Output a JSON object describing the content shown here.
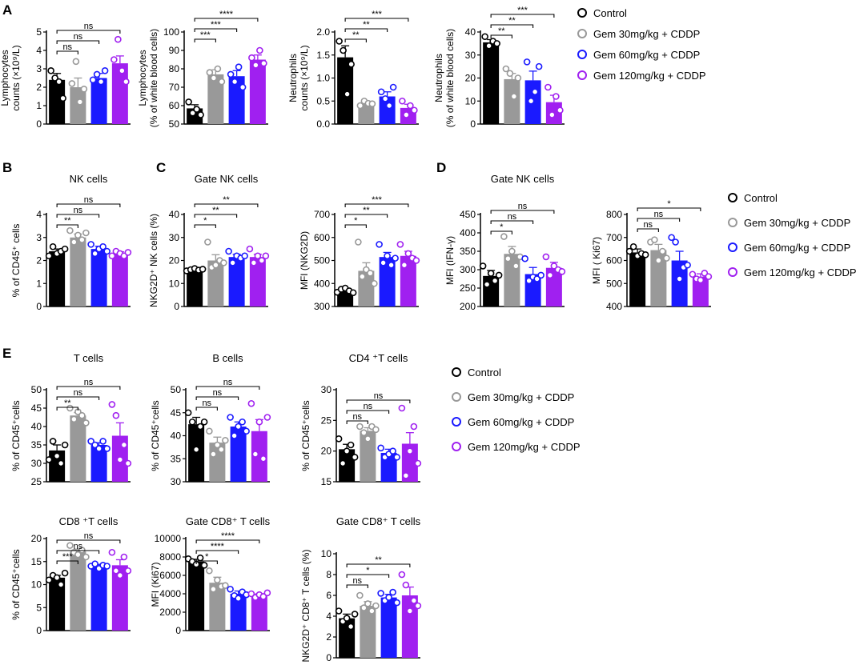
{
  "colors": {
    "control": "#000000",
    "gem30": "#999999",
    "gem60": "#1a1aff",
    "gem120": "#a020f0"
  },
  "legend": [
    "Control",
    "Gem 30mg/kg + CDDP",
    "Gem 60mg/kg + CDDP",
    "Gem 120mg/kg + CDDP"
  ],
  "panel_letters": [
    "A",
    "B",
    "C",
    "D",
    "E"
  ],
  "chart_data": [
    {
      "id": "a1",
      "type": "bar",
      "title": "",
      "ylabel": [
        "Lymphocytes",
        "counts (×10⁹/L)"
      ],
      "ylim": [
        0,
        5
      ],
      "ticks": [
        0,
        1,
        2,
        3,
        4,
        5
      ],
      "values": [
        2.4,
        2.0,
        2.5,
        3.3
      ],
      "errors": [
        0.35,
        0.5,
        0.25,
        0.4
      ],
      "points": [
        [
          2.9,
          2.5,
          2.3,
          1.4
        ],
        [
          2.2,
          3.4,
          1.2,
          1.9
        ],
        [
          2.4,
          2.7,
          2.3,
          2.9
        ],
        [
          3.5,
          4.6,
          2.9,
          2.3
        ]
      ],
      "comparisons": [
        {
          "to": 1,
          "label": "ns"
        },
        {
          "to": 2,
          "label": "ns"
        },
        {
          "to": 3,
          "label": "ns"
        }
      ]
    },
    {
      "id": "a2",
      "type": "bar",
      "title": "",
      "ylabel": [
        "Lymphocytes",
        "(% of white blood cells)"
      ],
      "ylim": [
        50,
        100
      ],
      "ticks": [
        50,
        60,
        70,
        80,
        90,
        100
      ],
      "values": [
        58.5,
        77,
        76,
        85
      ],
      "errors": [
        2,
        2.5,
        3,
        2.5
      ],
      "points": [
        [
          62,
          56,
          58,
          55
        ],
        [
          78,
          75,
          80,
          73
        ],
        [
          77,
          73,
          81,
          70
        ],
        [
          86,
          82,
          90,
          83
        ]
      ],
      "comparisons": [
        {
          "to": 1,
          "label": "***"
        },
        {
          "to": 2,
          "label": "***"
        },
        {
          "to": 3,
          "label": "****"
        }
      ]
    },
    {
      "id": "a3",
      "type": "bar",
      "title": "",
      "ylabel": [
        "Neutrophils",
        "counts (×10⁹/L)"
      ],
      "ylim": [
        0,
        2.0
      ],
      "ticks": [
        0.0,
        0.5,
        1.0,
        1.5,
        2.0
      ],
      "decimals": 1,
      "values": [
        1.45,
        0.45,
        0.6,
        0.35
      ],
      "errors": [
        0.25,
        0.05,
        0.1,
        0.08
      ],
      "points": [
        [
          1.8,
          1.6,
          0.65,
          1.3
        ],
        [
          0.4,
          0.5,
          0.45,
          0.44
        ],
        [
          0.7,
          0.55,
          0.4,
          0.8
        ],
        [
          0.5,
          0.2,
          0.4,
          0.3
        ]
      ],
      "comparisons": [
        {
          "to": 1,
          "label": "**"
        },
        {
          "to": 2,
          "label": "**"
        },
        {
          "to": 3,
          "label": "***"
        }
      ]
    },
    {
      "id": "a4",
      "type": "bar",
      "title": "",
      "ylabel": [
        "Neutrophils",
        "(% of white blood cells)"
      ],
      "ylim": [
        0,
        40
      ],
      "ticks": [
        0,
        10,
        20,
        30,
        40
      ],
      "values": [
        35.5,
        19.5,
        19,
        9.5
      ],
      "errors": [
        1.2,
        2.5,
        4,
        3
      ],
      "points": [
        [
          38,
          34,
          36,
          35
        ],
        [
          24,
          22,
          12,
          20
        ],
        [
          27,
          10,
          14,
          25
        ],
        [
          16,
          4,
          12,
          6
        ]
      ],
      "comparisons": [
        {
          "to": 1,
          "label": "**"
        },
        {
          "to": 2,
          "label": "**"
        },
        {
          "to": 3,
          "label": "***"
        }
      ]
    },
    {
      "id": "b1",
      "type": "bar",
      "title": "NK cells",
      "ylabel": [
        "% of CD45⁺ cells"
      ],
      "ylim": [
        0,
        4
      ],
      "ticks": [
        0,
        1,
        2,
        3,
        4
      ],
      "values": [
        2.4,
        3.0,
        2.5,
        2.3
      ],
      "errors": [
        0.1,
        0.15,
        0.12,
        0.08
      ],
      "points": [
        [
          2.2,
          2.6,
          2.3,
          2.4,
          2.5
        ],
        [
          3.3,
          2.8,
          3.1,
          2.9,
          3.2
        ],
        [
          2.7,
          2.3,
          2.5,
          2.6,
          2.4
        ],
        [
          2.2,
          2.4,
          2.3,
          2.2,
          2.35
        ]
      ],
      "comparisons": [
        {
          "to": 1,
          "label": "**"
        },
        {
          "to": 2,
          "label": "ns"
        },
        {
          "to": 3,
          "label": "ns"
        }
      ]
    },
    {
      "id": "c1",
      "type": "bar",
      "title": "Gate NK cells",
      "ylabel": [
        "NKG2D⁺ NK cells (%)"
      ],
      "ylim": [
        0,
        40
      ],
      "ticks": [
        0,
        10,
        20,
        30,
        40
      ],
      "values": [
        16,
        20,
        21.5,
        21.5
      ],
      "errors": [
        0.5,
        2.5,
        1.2,
        1.2
      ],
      "points": [
        [
          15.5,
          16,
          16.5,
          15.8,
          16.2
        ],
        [
          28,
          17,
          18,
          20,
          19
        ],
        [
          24,
          19,
          22,
          21,
          22
        ],
        [
          25,
          19,
          22,
          20,
          22
        ]
      ],
      "comparisons": [
        {
          "to": 1,
          "label": "*"
        },
        {
          "to": 2,
          "label": "**"
        },
        {
          "to": 3,
          "label": "**"
        }
      ]
    },
    {
      "id": "c2",
      "type": "bar",
      "title": "",
      "ylabel": [
        "MFI (NKG2D)"
      ],
      "ylim": [
        300,
        700
      ],
      "ticks": [
        300,
        400,
        500,
        600,
        700
      ],
      "values": [
        370,
        455,
        515,
        520
      ],
      "errors": [
        8,
        35,
        20,
        20
      ],
      "points": [
        [
          362,
          375,
          380,
          368,
          360
        ],
        [
          580,
          430,
          460,
          445,
          400
        ],
        [
          570,
          490,
          520,
          480,
          510
        ],
        [
          570,
          480,
          530,
          510,
          500
        ]
      ],
      "comparisons": [
        {
          "to": 1,
          "label": "*"
        },
        {
          "to": 2,
          "label": "**"
        },
        {
          "to": 3,
          "label": "***"
        }
      ]
    },
    {
      "id": "d1",
      "type": "bar",
      "title": "Gate NK cells",
      "ylabel": [
        "MFI (IFN-γ)"
      ],
      "ylim": [
        200,
        450
      ],
      "ticks": [
        200,
        250,
        300,
        350,
        400,
        450
      ],
      "values": [
        283,
        343,
        288,
        305
      ],
      "errors": [
        15,
        20,
        18,
        15
      ],
      "points": [
        [
          310,
          260,
          290,
          270,
          285
        ],
        [
          390,
          330,
          350,
          310,
          335
        ],
        [
          330,
          270,
          280,
          275,
          285
        ],
        [
          335,
          285,
          310,
          300,
          295
        ]
      ],
      "comparisons": [
        {
          "to": 1,
          "label": "*"
        },
        {
          "to": 2,
          "label": "ns"
        },
        {
          "to": 3,
          "label": "ns"
        }
      ]
    },
    {
      "id": "d2",
      "type": "bar",
      "title": "",
      "ylabel": [
        "MFI ( Ki67)"
      ],
      "ylim": [
        400,
        800
      ],
      "ticks": [
        400,
        500,
        600,
        700,
        800
      ],
      "values": [
        635,
        645,
        600,
        530
      ],
      "errors": [
        15,
        25,
        40,
        12
      ],
      "points": [
        [
          640,
          660,
          620,
          630,
          625
        ],
        [
          680,
          690,
          600,
          640,
          610
        ],
        [
          700,
          680,
          520,
          570,
          580
        ],
        [
          540,
          520,
          515,
          545,
          530
        ]
      ],
      "comparisons": [
        {
          "to": 1,
          "label": "ns"
        },
        {
          "to": 2,
          "label": "ns"
        },
        {
          "to": 3,
          "label": "*"
        }
      ]
    },
    {
      "id": "e1",
      "type": "bar",
      "title": "T cells",
      "ylabel": [
        "% of CD45⁺cells"
      ],
      "ylim": [
        25,
        50
      ],
      "ticks": [
        25,
        30,
        35,
        40,
        45,
        50
      ],
      "values": [
        33.5,
        43,
        35,
        37.5
      ],
      "errors": [
        1.5,
        0.8,
        0.6,
        3.5
      ],
      "points": [
        [
          31,
          36,
          32,
          30,
          35
        ],
        [
          45,
          42,
          44,
          43,
          41
        ],
        [
          36,
          35,
          34,
          36,
          34
        ],
        [
          46,
          43,
          31,
          35,
          30
        ]
      ],
      "comparisons": [
        {
          "to": 1,
          "label": "**"
        },
        {
          "to": 2,
          "label": "ns"
        },
        {
          "to": 3,
          "label": "ns"
        }
      ]
    },
    {
      "id": "e2",
      "type": "bar",
      "title": "B cells",
      "ylabel": [
        "% of CD45⁺cells"
      ],
      "ylim": [
        30,
        50
      ],
      "ticks": [
        30,
        35,
        40,
        45,
        50
      ],
      "values": [
        42.5,
        38.5,
        42,
        41
      ],
      "errors": [
        1.5,
        1.2,
        1.0,
        2.5
      ],
      "points": [
        [
          45,
          43,
          37,
          42,
          43
        ],
        [
          41,
          36,
          38,
          37,
          39
        ],
        [
          44,
          40,
          42,
          43,
          41
        ],
        [
          47,
          36,
          43,
          35,
          44
        ]
      ],
      "comparisons": [
        {
          "to": 1,
          "label": "ns"
        },
        {
          "to": 2,
          "label": "ns"
        },
        {
          "to": 3,
          "label": "ns"
        }
      ]
    },
    {
      "id": "e3",
      "type": "bar",
      "title": "CD4 ⁺T cells",
      "ylabel": [
        "% of CD45⁺cells"
      ],
      "ylim": [
        15,
        30
      ],
      "ticks": [
        15,
        20,
        25,
        30
      ],
      "values": [
        20.3,
        23.3,
        19.7,
        21.2
      ],
      "errors": [
        0.8,
        0.5,
        0.6,
        1.8
      ],
      "points": [
        [
          22,
          18,
          20,
          21,
          19
        ],
        [
          24,
          23,
          22,
          24,
          23.5
        ],
        [
          20.5,
          19,
          19.5,
          20,
          19
        ],
        [
          27,
          16,
          20,
          24,
          18
        ]
      ],
      "comparisons": [
        {
          "to": 1,
          "label": "ns"
        },
        {
          "to": 2,
          "label": "ns"
        },
        {
          "to": 3,
          "label": "ns"
        }
      ]
    },
    {
      "id": "e4",
      "type": "bar",
      "title": "CD8 ⁺T cells",
      "ylabel": [
        "% of CD45⁺cells"
      ],
      "ylim": [
        0,
        20
      ],
      "ticks": [
        0,
        5,
        10,
        15,
        20
      ],
      "values": [
        11.5,
        17.2,
        14.1,
        14.2
      ],
      "errors": [
        0.5,
        0.5,
        0.3,
        1.2
      ],
      "points": [
        [
          11,
          12,
          11.5,
          10,
          12.5
        ],
        [
          18.5,
          17,
          16.5,
          17.5,
          16
        ],
        [
          14,
          14.5,
          13.5,
          14.2,
          14
        ],
        [
          17,
          13,
          12,
          16,
          13
        ]
      ],
      "comparisons": [
        {
          "to": 1,
          "label": "***"
        },
        {
          "to": 2,
          "label": "ns"
        },
        {
          "to": 3,
          "label": "ns"
        }
      ]
    },
    {
      "id": "e5",
      "type": "bar",
      "title": "Gate CD8⁺ T cells",
      "ylabel": [
        "MFI (Ki67)"
      ],
      "ylim": [
        0,
        10000
      ],
      "ticks": [
        0,
        2000,
        4000,
        6000,
        8000,
        10000
      ],
      "values": [
        7500,
        5200,
        4000,
        3800
      ],
      "errors": [
        250,
        600,
        300,
        200
      ],
      "points": [
        [
          7800,
          7500,
          7200,
          7900,
          7100
        ],
        [
          6500,
          4500,
          5500,
          4800,
          4900
        ],
        [
          4500,
          3800,
          3500,
          4200,
          3900
        ],
        [
          4000,
          3600,
          3900,
          3700,
          4100
        ]
      ],
      "comparisons": [
        {
          "to": 1,
          "label": "*"
        },
        {
          "to": 2,
          "label": "****"
        },
        {
          "to": 3,
          "label": "****"
        }
      ]
    },
    {
      "id": "e6",
      "type": "bar",
      "title": "Gate CD8⁺ T cells",
      "ylabel": [
        "NKG2D⁺ CD8⁺ T cells (%)"
      ],
      "ylim": [
        0,
        10
      ],
      "ticks": [
        0,
        2,
        4,
        6,
        8,
        10
      ],
      "values": [
        3.8,
        5.0,
        5.8,
        6.0
      ],
      "errors": [
        0.4,
        0.4,
        0.3,
        0.8
      ],
      "points": [
        [
          4.5,
          3.5,
          3.8,
          3.0,
          4.2
        ],
        [
          6.0,
          4.8,
          5.2,
          4.5,
          5.0
        ],
        [
          6.2,
          5.5,
          5.8,
          6.3,
          5.3
        ],
        [
          8.0,
          7.0,
          4.5,
          5.5,
          5.0
        ]
      ],
      "comparisons": [
        {
          "to": 1,
          "label": "ns"
        },
        {
          "to": 2,
          "label": "*"
        },
        {
          "to": 3,
          "label": "**"
        }
      ]
    }
  ]
}
